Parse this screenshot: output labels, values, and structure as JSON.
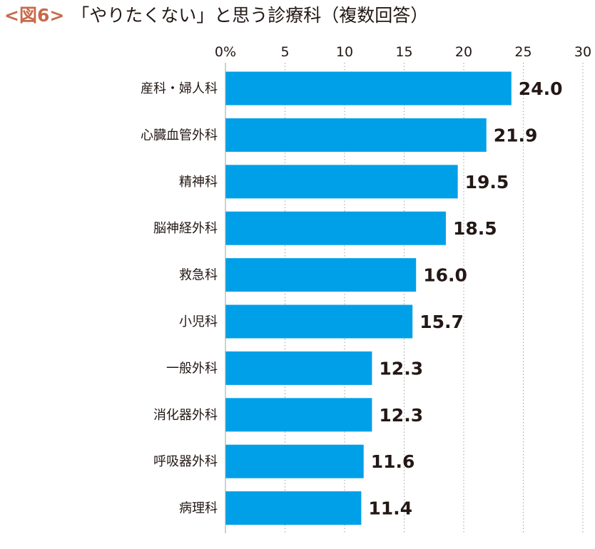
{
  "figure_label": "<図6>",
  "chart_data": {
    "type": "bar",
    "orientation": "horizontal",
    "title": "「やりたくない」と思う診療科（複数回答）",
    "categories": [
      "産科・婦人科",
      "心臓血管外科",
      "精神科",
      "脳神経外科",
      "救急科",
      "小児科",
      "一般外科",
      "消化器外科",
      "呼吸器外科",
      "病理科"
    ],
    "values": [
      24.0,
      21.9,
      19.5,
      18.5,
      16.0,
      15.7,
      12.3,
      12.3,
      11.6,
      11.4
    ],
    "value_labels": [
      "24.0",
      "21.9",
      "19.5",
      "18.5",
      "16.0",
      "15.7",
      "12.3",
      "12.3",
      "11.6",
      "11.4"
    ],
    "x_ticks": [
      "0%",
      "5",
      "10",
      "15",
      "20",
      "25",
      "30"
    ],
    "xlim": [
      0,
      30
    ],
    "grid": "vertical dotted",
    "bar_color": "#00a0e9",
    "text_color": "#231815",
    "grid_color": "#9fa0a0"
  }
}
